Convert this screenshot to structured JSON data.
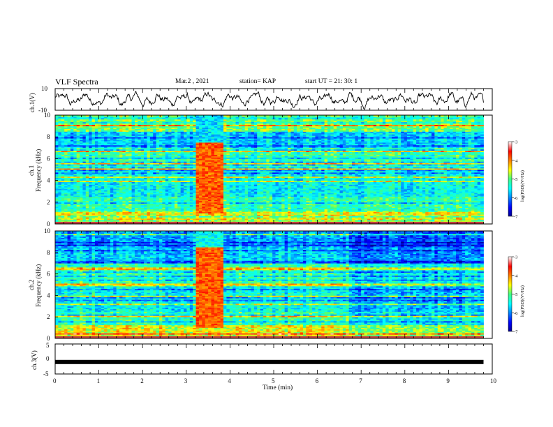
{
  "header": {
    "title": "VLF Spectra",
    "date": "Mar.2 , 2021",
    "station": "station= KAP",
    "start": "start  UT =   21: 30: 1"
  },
  "chart_data": [
    {
      "type": "line",
      "panel": "ch1-waveform",
      "ylabel": "ch.1(V)",
      "ylim": [
        -10,
        10
      ],
      "yticks": [
        "10",
        "-10"
      ],
      "xlim": [
        0,
        10
      ],
      "x_end": 9.8
    },
    {
      "type": "heatmap",
      "panel": "ch1-spectrogram",
      "ylabel_top": "ch.1",
      "ylabel": "Frequency (kHz)",
      "ylim": [
        0,
        10
      ],
      "yticks": [
        "0",
        "2",
        "4",
        "6",
        "8",
        "10"
      ],
      "xlim": [
        0,
        10
      ],
      "x_end": 9.8,
      "burst_x": [
        3.25,
        3.85
      ],
      "colorbar": {
        "min": -7,
        "max": -3,
        "ticks": [
          "-3",
          "-4",
          "-5",
          "-6",
          "-7"
        ],
        "label": "log(PSD)(V²/Hz)"
      }
    },
    {
      "type": "heatmap",
      "panel": "ch2-spectrogram",
      "ylabel_top": "ch.2",
      "ylabel": "Frequency (kHz)",
      "ylim": [
        0,
        10
      ],
      "yticks": [
        "0",
        "2",
        "4",
        "6",
        "8",
        "10"
      ],
      "xlim": [
        0,
        10
      ],
      "x_end": 9.8,
      "burst_x": [
        3.25,
        3.85
      ],
      "colorbar": {
        "min": -7,
        "max": -3,
        "ticks": [
          "-3",
          "-4",
          "-5",
          "-6",
          "-7"
        ],
        "label": "log(PSD)(V²/Hz)"
      }
    },
    {
      "type": "line",
      "panel": "ch3-waveform",
      "ylabel": "ch.3(V)",
      "ylim": [
        -5,
        5
      ],
      "yticks": [
        "5",
        "0",
        "-5"
      ],
      "xlim": [
        0,
        10
      ],
      "x_end": 9.8,
      "level": -1,
      "xlabel": "Time (min)",
      "xticks": [
        "0",
        "1",
        "2",
        "3",
        "4",
        "5",
        "6",
        "7",
        "8",
        "9",
        "10"
      ]
    }
  ]
}
